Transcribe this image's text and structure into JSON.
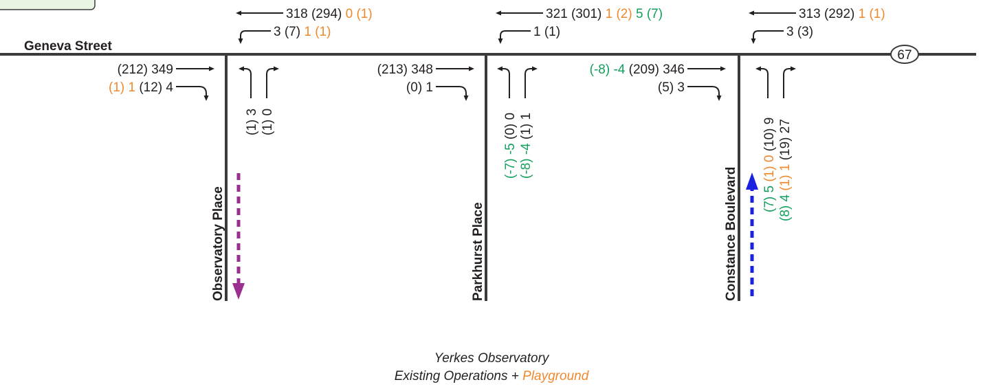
{
  "streets": {
    "main": "Geneva Street",
    "route_shield": "67",
    "side": [
      "Observatory Place",
      "Parkhurst Place",
      "Constance Boulevard"
    ]
  },
  "caption": {
    "line1": "Yerkes Observatory",
    "line2_prefix": "Existing Operations + ",
    "line2_highlight": "Playground"
  },
  "volumes": {
    "observatory": {
      "wb_thru": {
        "base": "318 (294) ",
        "or": "0 (1)"
      },
      "wb_left": {
        "base": "3 (7) ",
        "or": "1 (1)"
      },
      "eb_thru": {
        "base": "(212) 349"
      },
      "eb_right": {
        "or": "(1) 1 ",
        "base": "(12) 4"
      },
      "nb_left": {
        "base": "(1) 3"
      },
      "nb_right": {
        "base": "(1) 0"
      }
    },
    "parkhurst": {
      "wb_thru": {
        "base": "321 (301) ",
        "or": "1 (2) ",
        "gr": "5 (7)"
      },
      "wb_left": {
        "base": "1 (1)"
      },
      "eb_thru": {
        "base": "(213) 348"
      },
      "eb_right": {
        "base": "(0) 1"
      },
      "nb_left": {
        "gr": "(-7) -5 ",
        "base": "(0) 0"
      },
      "nb_right": {
        "gr": "(-8) -4 ",
        "base": "(1) 1"
      }
    },
    "constance": {
      "wb_thru": {
        "base": "313 (292) ",
        "or": "1 (1)"
      },
      "wb_left": {
        "base": "3 (3)"
      },
      "eb_thru": {
        "gr": "(-8) -4 ",
        "base": "(209) 346"
      },
      "eb_right": {
        "base": "(5) 3"
      },
      "nb_left": {
        "gr": "(7) 5 ",
        "or": "(1) 0 ",
        "base": "(10) 9"
      },
      "nb_right": {
        "gr": "(8) 4 ",
        "or": "(1) 1 ",
        "base": "(19) 27"
      }
    }
  },
  "colors": {
    "text": "#231f20",
    "road": "#3a3a3a",
    "playground": "#f0892e",
    "change": "#12a05c",
    "outbound_route": "#9b2f8f",
    "inbound_route": "#1a22e0",
    "legend_box": "#e9f5e2"
  }
}
